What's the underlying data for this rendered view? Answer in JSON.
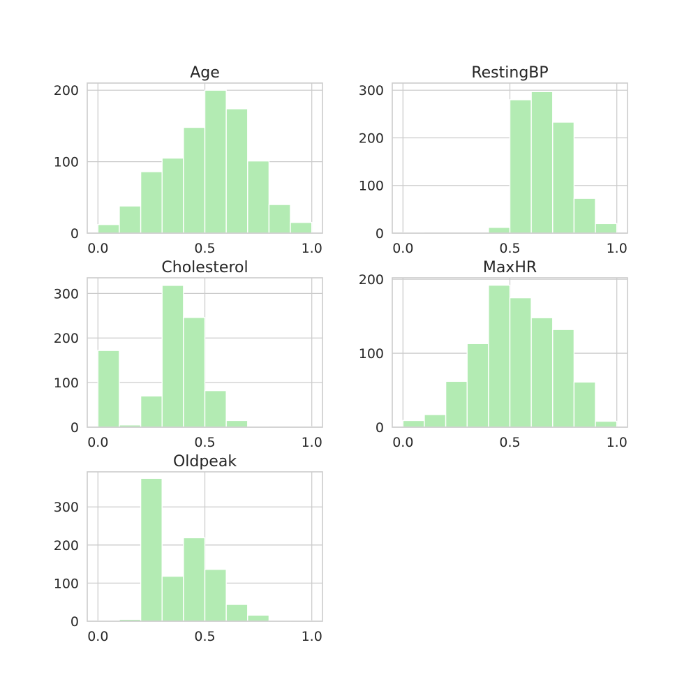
{
  "chart_data": [
    {
      "type": "bar",
      "title": "Age",
      "bin_edges": [
        0,
        0.1,
        0.2,
        0.3,
        0.4,
        0.5,
        0.6,
        0.7,
        0.8,
        0.9,
        1.0
      ],
      "values": [
        12,
        38,
        86,
        105,
        148,
        200,
        174,
        101,
        40,
        15
      ],
      "ylim": [
        0,
        210
      ],
      "xlim": [
        -0.05,
        1.05
      ],
      "yticks": [
        0,
        100,
        200
      ],
      "xticks": [
        0.0,
        0.5,
        1.0
      ],
      "xtick_labels": [
        "0.0",
        "0.5",
        "1.0"
      ],
      "ytick_labels": [
        "0",
        "100",
        "200"
      ],
      "grid": true
    },
    {
      "type": "bar",
      "title": "RestingBP",
      "bin_edges": [
        0,
        0.1,
        0.2,
        0.3,
        0.4,
        0.5,
        0.6,
        0.7,
        0.8,
        0.9,
        1.0
      ],
      "values": [
        1,
        0,
        0,
        0,
        12,
        280,
        297,
        233,
        73,
        20
      ],
      "ylim": [
        0,
        315
      ],
      "xlim": [
        -0.05,
        1.05
      ],
      "yticks": [
        0,
        100,
        200,
        300
      ],
      "xticks": [
        0.0,
        0.5,
        1.0
      ],
      "xtick_labels": [
        "0.0",
        "0.5",
        "1.0"
      ],
      "ytick_labels": [
        "0",
        "100",
        "200",
        "300"
      ],
      "grid": true
    },
    {
      "type": "bar",
      "title": "Cholesterol",
      "bin_edges": [
        0,
        0.1,
        0.2,
        0.3,
        0.4,
        0.5,
        0.6,
        0.7,
        0.8,
        0.9,
        1.0
      ],
      "values": [
        172,
        5,
        70,
        318,
        246,
        82,
        15,
        1,
        0,
        1
      ],
      "ylim": [
        0,
        335
      ],
      "xlim": [
        -0.05,
        1.05
      ],
      "yticks": [
        0,
        100,
        200,
        300
      ],
      "xticks": [
        0.0,
        0.5,
        1.0
      ],
      "xtick_labels": [
        "0.0",
        "0.5",
        "1.0"
      ],
      "ytick_labels": [
        "0",
        "100",
        "200",
        "300"
      ],
      "grid": true
    },
    {
      "type": "bar",
      "title": "MaxHR",
      "bin_edges": [
        0,
        0.1,
        0.2,
        0.3,
        0.4,
        0.5,
        0.6,
        0.7,
        0.8,
        0.9,
        1.0
      ],
      "values": [
        9,
        17,
        62,
        113,
        192,
        175,
        148,
        132,
        61,
        8
      ],
      "ylim": [
        0,
        202
      ],
      "xlim": [
        -0.05,
        1.05
      ],
      "yticks": [
        0,
        100,
        200
      ],
      "xticks": [
        0.0,
        0.5,
        1.0
      ],
      "xtick_labels": [
        "0.0",
        "0.5",
        "1.0"
      ],
      "ytick_labels": [
        "0",
        "100",
        "200"
      ],
      "grid": true
    },
    {
      "type": "bar",
      "title": "Oldpeak",
      "bin_edges": [
        0,
        0.1,
        0.2,
        0.3,
        0.4,
        0.5,
        0.6,
        0.7,
        0.8,
        0.9,
        1.0
      ],
      "values": [
        1,
        5,
        375,
        118,
        219,
        136,
        44,
        16,
        1,
        1
      ],
      "ylim": [
        0,
        392
      ],
      "xlim": [
        -0.05,
        1.05
      ],
      "yticks": [
        0,
        100,
        200,
        300
      ],
      "xticks": [
        0.0,
        0.5,
        1.0
      ],
      "xtick_labels": [
        "0.0",
        "0.5",
        "1.0"
      ],
      "ytick_labels": [
        "0",
        "100",
        "200",
        "300"
      ],
      "grid": true
    }
  ],
  "colors": {
    "bar": "#b3ebb3",
    "grid": "#cccccc",
    "text": "#262626"
  }
}
